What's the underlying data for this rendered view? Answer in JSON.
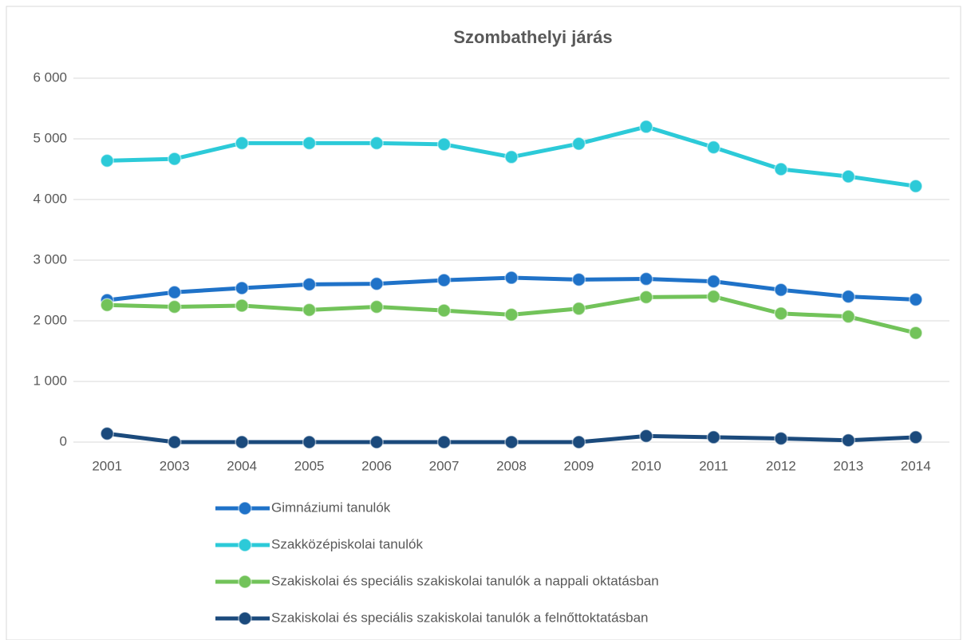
{
  "chart_data": {
    "type": "line",
    "title": "Szombathelyi járás",
    "categories": [
      "2001",
      "2003",
      "2004",
      "2005",
      "2006",
      "2007",
      "2008",
      "2009",
      "2010",
      "2011",
      "2012",
      "2013",
      "2014"
    ],
    "series": [
      {
        "name": "Gimnáziumi tanulók",
        "color": "#1f72c8",
        "values": [
          2340,
          2470,
          2540,
          2600,
          2610,
          2670,
          2710,
          2680,
          2690,
          2650,
          2510,
          2400,
          2350
        ]
      },
      {
        "name": "Szakközépiskolai tanulók",
        "color": "#2ccad8",
        "values": [
          4640,
          4670,
          4930,
          4930,
          4930,
          4910,
          4700,
          4920,
          5200,
          4860,
          4500,
          4380,
          4220
        ]
      },
      {
        "name": "Szakiskolai és speciális szakiskolai tanulók a nappali oktatásban",
        "color": "#72c35a",
        "values": [
          2260,
          2230,
          2250,
          2180,
          2230,
          2170,
          2100,
          2200,
          2390,
          2400,
          2120,
          2070,
          1800
        ]
      },
      {
        "name": "Szakiskolai és speciális szakiskolai tanulók a felnőttoktatásban",
        "color": "#1b4a7c",
        "values": [
          140,
          0,
          0,
          0,
          0,
          0,
          0,
          0,
          100,
          80,
          60,
          30,
          80
        ]
      }
    ],
    "ylim": [
      0,
      6000
    ],
    "yticks": [
      0,
      {
        "value": 1000,
        "label": "1 000"
      },
      {
        "value": 2000,
        "label": "2 000"
      },
      {
        "value": 3000,
        "label": "3 000"
      },
      {
        "value": 4000,
        "label": "4 000"
      },
      {
        "value": 5000,
        "label": "5 000"
      },
      {
        "value": 6000,
        "label": "6 000"
      }
    ],
    "grid": true,
    "legend": "bottom"
  }
}
